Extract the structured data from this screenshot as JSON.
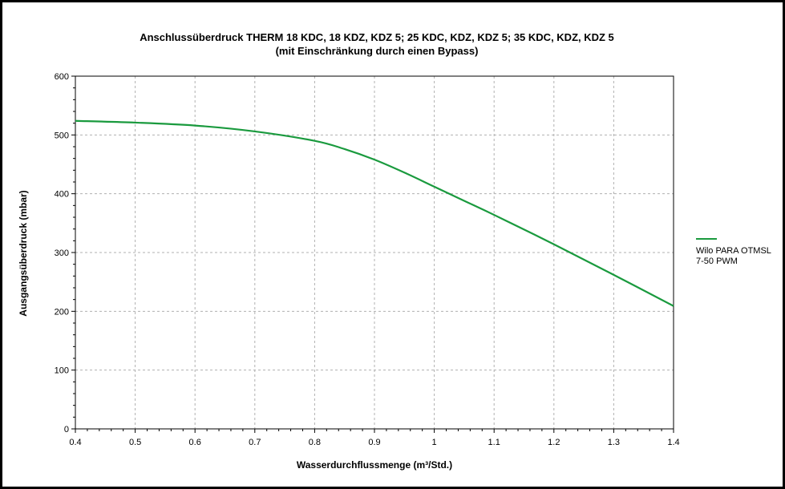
{
  "chart_data": {
    "type": "line",
    "title": "Anschlussüberdruck THERM 18 KDC, 18 KDZ, KDZ 5; 25 KDC, KDZ, KDZ 5; 35 KDC, KDZ, KDZ 5",
    "subtitle": "(mit Einschränkung durch einen Bypass)",
    "xlabel": "Wasserdurchflussmenge (m³/Std.)",
    "ylabel": "Ausgangsüberdruck (mbar)",
    "xlim": [
      0.4,
      1.4
    ],
    "ylim": [
      0,
      600
    ],
    "xticks": [
      "0.4",
      "0.5",
      "0.6",
      "0.7",
      "0.8",
      "0.9",
      "1",
      "1.1",
      "1.2",
      "1.3",
      "1.4"
    ],
    "yticks": [
      "0",
      "100",
      "200",
      "300",
      "400",
      "500",
      "600"
    ],
    "grid": true,
    "legend_position": "right",
    "series": [
      {
        "name": "Wilo PARA OTMSL 7-50 PWM",
        "color": "#1a9a3e",
        "x": [
          0.4,
          0.5,
          0.6,
          0.7,
          0.8,
          0.85,
          0.9,
          0.95,
          1.0,
          1.05,
          1.1,
          1.2,
          1.3,
          1.4
        ],
        "y": [
          524,
          521,
          516,
          506,
          490,
          476,
          458,
          436,
          412,
          388,
          364,
          314,
          262,
          209
        ]
      }
    ]
  },
  "legend": {
    "line1": "Wilo PARA OTMSL",
    "line2": "7-50 PWM"
  }
}
